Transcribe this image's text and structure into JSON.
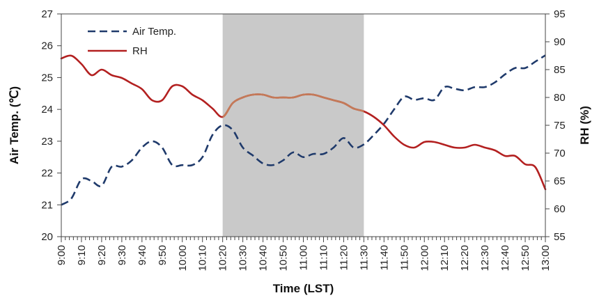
{
  "chart_data": {
    "type": "line",
    "xlabel": "Time (LST)",
    "ylabel_left": "Air Temp. (℃)",
    "ylabel_right": "RH (%)",
    "x_ticks": [
      "9:00",
      "9:10",
      "9:20",
      "9:30",
      "9:40",
      "9:50",
      "10:00",
      "10:10",
      "10:20",
      "10:30",
      "10:40",
      "10:50",
      "11:00",
      "11:10",
      "11:20",
      "11:30",
      "11:40",
      "11:50",
      "12:00",
      "12:10",
      "12:20",
      "12:30",
      "12:40",
      "12:50",
      "13:00"
    ],
    "x_range_minutes": [
      0,
      240
    ],
    "y_left_range": [
      20,
      27
    ],
    "y_left_ticks": [
      "20",
      "21",
      "22",
      "23",
      "24",
      "25",
      "26",
      "27"
    ],
    "y_right_range": [
      55,
      95
    ],
    "y_right_ticks": [
      "55",
      "60",
      "65",
      "70",
      "75",
      "80",
      "85",
      "90",
      "95"
    ],
    "shaded_region": {
      "from": "10:20",
      "to": "11:30",
      "color": "#c9c9c9"
    },
    "legend_position": "top-left",
    "series": [
      {
        "name": "Air Temp.",
        "axis": "left",
        "style": "dashed",
        "color": "#1f3a6b",
        "points": [
          [
            0,
            21.0
          ],
          [
            5,
            21.2
          ],
          [
            10,
            21.8
          ],
          [
            15,
            21.75
          ],
          [
            20,
            21.6
          ],
          [
            25,
            22.2
          ],
          [
            30,
            22.2
          ],
          [
            35,
            22.4
          ],
          [
            40,
            22.8
          ],
          [
            45,
            23.0
          ],
          [
            50,
            22.8
          ],
          [
            55,
            22.25
          ],
          [
            60,
            22.25
          ],
          [
            65,
            22.25
          ],
          [
            70,
            22.5
          ],
          [
            75,
            23.2
          ],
          [
            80,
            23.5
          ],
          [
            85,
            23.35
          ],
          [
            90,
            22.8
          ],
          [
            95,
            22.55
          ],
          [
            100,
            22.3
          ],
          [
            105,
            22.25
          ],
          [
            110,
            22.4
          ],
          [
            115,
            22.65
          ],
          [
            120,
            22.5
          ],
          [
            125,
            22.6
          ],
          [
            130,
            22.6
          ],
          [
            135,
            22.8
          ],
          [
            140,
            23.1
          ],
          [
            145,
            22.8
          ],
          [
            150,
            22.9
          ],
          [
            155,
            23.2
          ],
          [
            160,
            23.55
          ],
          [
            165,
            24.0
          ],
          [
            170,
            24.4
          ],
          [
            175,
            24.3
          ],
          [
            180,
            24.35
          ],
          [
            185,
            24.3
          ],
          [
            190,
            24.7
          ],
          [
            195,
            24.65
          ],
          [
            200,
            24.6
          ],
          [
            205,
            24.7
          ],
          [
            210,
            24.7
          ],
          [
            215,
            24.85
          ],
          [
            220,
            25.1
          ],
          [
            225,
            25.3
          ],
          [
            230,
            25.3
          ],
          [
            235,
            25.5
          ],
          [
            240,
            25.7
          ]
        ]
      },
      {
        "name": "RH",
        "axis": "right",
        "style": "solid",
        "color": "#b32020",
        "highlight_color": "#c47a58",
        "points": [
          [
            0,
            87.0
          ],
          [
            5,
            87.5
          ],
          [
            10,
            86.0
          ],
          [
            15,
            84.0
          ],
          [
            20,
            85.0
          ],
          [
            25,
            84.0
          ],
          [
            30,
            83.5
          ],
          [
            35,
            82.5
          ],
          [
            40,
            81.5
          ],
          [
            45,
            79.5
          ],
          [
            50,
            79.5
          ],
          [
            55,
            82.0
          ],
          [
            60,
            82.0
          ],
          [
            65,
            80.5
          ],
          [
            70,
            79.5
          ],
          [
            75,
            78.0
          ],
          [
            80,
            76.5
          ],
          [
            85,
            79.0
          ],
          [
            90,
            80.0
          ],
          [
            95,
            80.5
          ],
          [
            100,
            80.5
          ],
          [
            105,
            80.0
          ],
          [
            110,
            80.0
          ],
          [
            115,
            80.0
          ],
          [
            120,
            80.5
          ],
          [
            125,
            80.5
          ],
          [
            130,
            80.0
          ],
          [
            135,
            79.5
          ],
          [
            140,
            79.0
          ],
          [
            145,
            78.0
          ],
          [
            150,
            77.5
          ],
          [
            155,
            76.5
          ],
          [
            160,
            75.0
          ],
          [
            165,
            73.0
          ],
          [
            170,
            71.5
          ],
          [
            175,
            71.0
          ],
          [
            180,
            72.0
          ],
          [
            185,
            72.0
          ],
          [
            190,
            71.5
          ],
          [
            195,
            71.0
          ],
          [
            200,
            71.0
          ],
          [
            205,
            71.5
          ],
          [
            210,
            71.0
          ],
          [
            215,
            70.5
          ],
          [
            220,
            69.5
          ],
          [
            225,
            69.5
          ],
          [
            230,
            68.0
          ],
          [
            235,
            67.5
          ],
          [
            240,
            63.5
          ]
        ]
      }
    ]
  }
}
